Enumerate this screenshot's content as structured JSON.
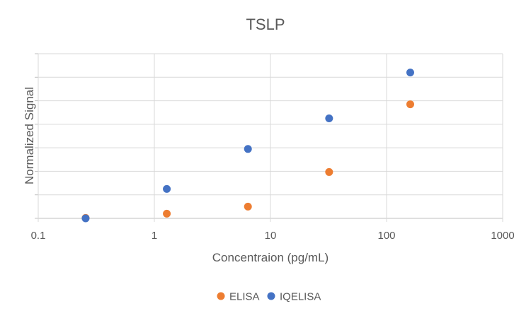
{
  "chart_data": {
    "type": "scatter",
    "title": "TSLP",
    "xlabel": "Concentraion (pg/mL)",
    "ylabel": "Normalized Signal",
    "x_scale": "log",
    "xlim": [
      0.1,
      1000
    ],
    "x_ticks": [
      "0.1",
      "1",
      "10",
      "100",
      "1000"
    ],
    "ylim": [
      0,
      7
    ],
    "y_tick_count": 7,
    "y_tick_labels_shown": false,
    "grid": true,
    "legend_position": "bottom",
    "series": [
      {
        "name": "ELISA",
        "color": "#ED7D31",
        "x": [
          0.256,
          1.28,
          6.4,
          32,
          160
        ],
        "y": [
          0.02,
          0.2,
          0.5,
          1.97,
          4.85
        ]
      },
      {
        "name": "IQELISA",
        "color": "#4472C4",
        "x": [
          0.256,
          1.28,
          6.4,
          32,
          160
        ],
        "y": [
          0.0,
          1.25,
          2.95,
          4.25,
          6.2
        ]
      }
    ]
  }
}
